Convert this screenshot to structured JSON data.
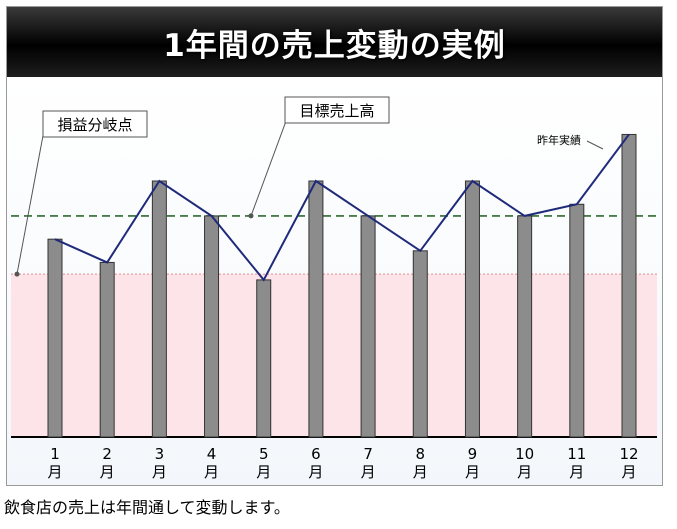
{
  "title": "1年間の売上変動の実例",
  "caption": "飲食店の売上は年間通して変動します。",
  "chart_data": {
    "type": "bar",
    "categories": [
      "1\n月",
      "2\n月",
      "3\n月",
      "4\n月",
      "5\n月",
      "6\n月",
      "7\n月",
      "8\n月",
      "9\n月",
      "10\n月",
      "11\n月",
      "12\n月"
    ],
    "values": [
      68,
      60,
      88,
      76,
      54,
      88,
      76,
      64,
      88,
      76,
      80,
      104
    ],
    "ylim": [
      0,
      110
    ],
    "break_even": 56,
    "target": 76,
    "annotations": {
      "break_even_label": "損益分岐点",
      "target_label": "目標売上高",
      "last_year_label": "昨年実績"
    },
    "colors": {
      "bar": "#8c8c8c",
      "bar_border": "#333333",
      "line": "#1f2a7a",
      "target_line": "#2e6b2e",
      "break_even_line": "#e8a0a8",
      "below_break_even_fill": "#fde4e8"
    }
  }
}
